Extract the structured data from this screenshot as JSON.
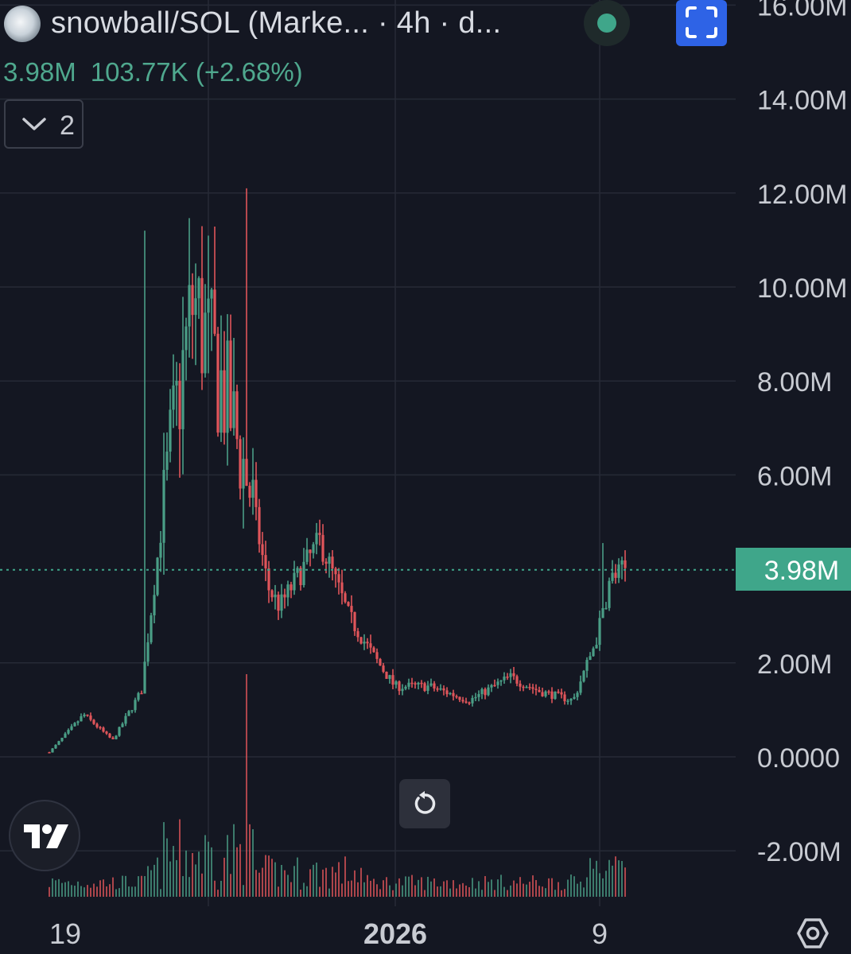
{
  "header": {
    "title": "snowball/SOL (Marke... · 4h · d...",
    "legend_values": [
      "3.98M",
      "103.77K (+2.68%)"
    ],
    "indicator_count": "2"
  },
  "colors": {
    "background": "#141722",
    "up": "#4a9e86",
    "down": "#e0555a",
    "grid": "#262a36",
    "price_line": "#3fa68a",
    "accent_blue": "#2e63e6"
  },
  "icons": {
    "symbol": "snowball-token-icon",
    "status": "status-dot-icon",
    "fullscreen": "fullscreen-icon",
    "collapse": "chevron-down-icon",
    "logo": "tradingview-logo-icon",
    "reset": "reset-chart-icon",
    "settings": "settings-icon"
  },
  "chart_data": {
    "type": "candlestick",
    "interval": "4h",
    "y_axis": {
      "labels": [
        "16.00M",
        "14.00M",
        "12.00M",
        "10.00M",
        "8.00M",
        "6.00M",
        "2.00M",
        "0.0000",
        "-2.00M"
      ],
      "values": [
        16,
        14,
        12,
        10,
        8,
        6,
        2,
        0,
        -2
      ],
      "unit": "M",
      "range": [
        -2.2,
        16.2
      ]
    },
    "x_axis": {
      "labels": [
        "19",
        "2026",
        "9"
      ]
    },
    "last_price": 3.98,
    "last_price_label": "3.98M",
    "grid": true,
    "volume_pane": true,
    "key_points": [
      {
        "label": "start",
        "value": 0.1
      },
      {
        "label": "first peak",
        "value": 11.2
      },
      {
        "label": "wick high",
        "value": 12.1
      },
      {
        "label": "decline",
        "value": 3.0
      },
      {
        "label": "base",
        "value": 1.2
      },
      {
        "label": "latest",
        "value": 3.98
      }
    ]
  }
}
